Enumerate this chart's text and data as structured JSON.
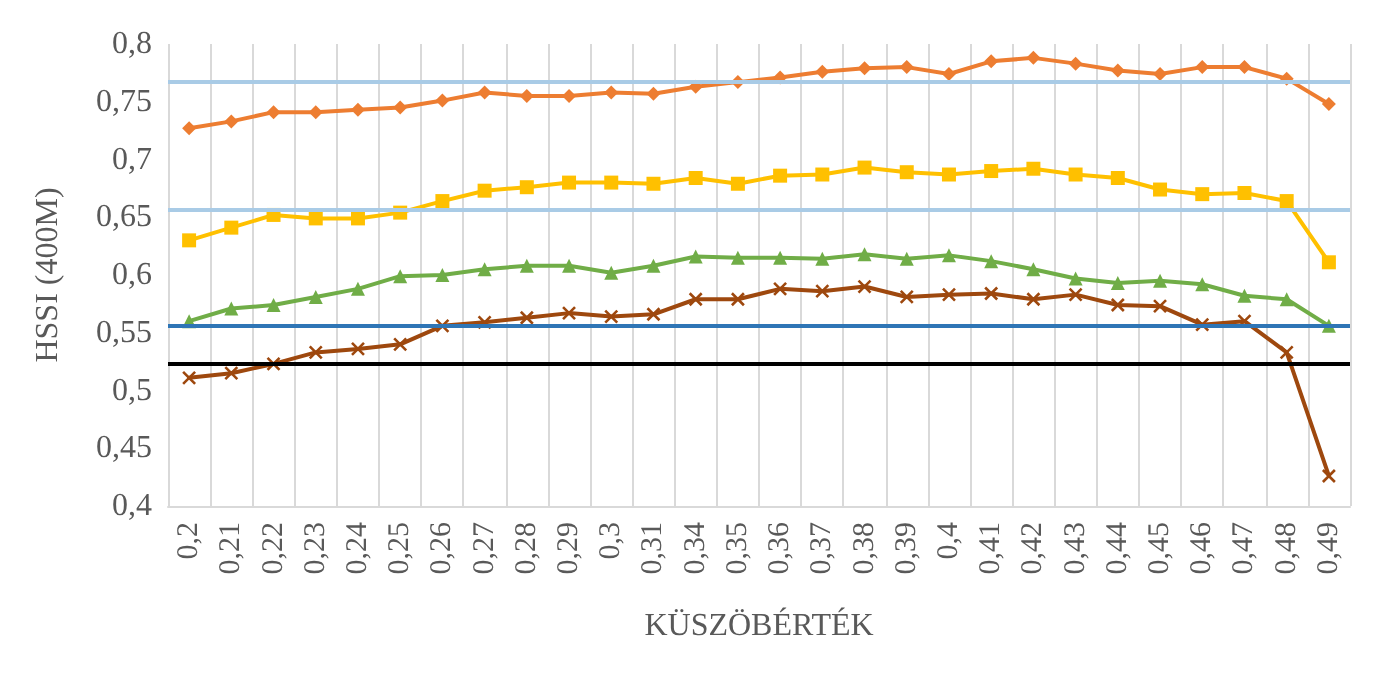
{
  "chart_data": {
    "type": "line",
    "xlabel": "KÜSZÖBÉRTÉK",
    "ylabel": "HSSI (400M)",
    "categories": [
      "0,2",
      "0,21",
      "0,22",
      "0,23",
      "0,24",
      "0,25",
      "0,26",
      "0,27",
      "0,28",
      "0,29",
      "0,3",
      "0,31",
      "0,34",
      "0,35",
      "0,36",
      "0,37",
      "0,38",
      "0,39",
      "0,4",
      "0,41",
      "0,42",
      "0,43",
      "0,44",
      "0,45",
      "0,46",
      "0,47",
      "0,48",
      "0,49"
    ],
    "series": [
      {
        "color": "#ed7d31",
        "marker": "diamond",
        "values": [
          0.727,
          0.733,
          0.741,
          0.741,
          0.743,
          0.745,
          0.751,
          0.758,
          0.755,
          0.755,
          0.758,
          0.757,
          0.763,
          0.767,
          0.771,
          0.776,
          0.779,
          0.78,
          0.774,
          0.785,
          0.788,
          0.783,
          0.777,
          0.774,
          0.78,
          0.78,
          0.77,
          0.748
        ]
      },
      {
        "color": "#ffc000",
        "marker": "square",
        "values": [
          0.63,
          0.641,
          0.652,
          0.649,
          0.649,
          0.654,
          0.664,
          0.673,
          0.676,
          0.68,
          0.68,
          0.679,
          0.684,
          0.679,
          0.686,
          0.687,
          0.693,
          0.689,
          0.687,
          0.69,
          0.692,
          0.687,
          0.684,
          0.674,
          0.67,
          0.671,
          0.664,
          0.611
        ]
      },
      {
        "color": "#70ad47",
        "marker": "triangle",
        "values": [
          0.56,
          0.571,
          0.574,
          0.581,
          0.588,
          0.599,
          0.6,
          0.605,
          0.608,
          0.608,
          0.602,
          0.608,
          0.616,
          0.615,
          0.615,
          0.614,
          0.618,
          0.614,
          0.617,
          0.612,
          0.605,
          0.597,
          0.593,
          0.595,
          0.592,
          0.582,
          0.579,
          0.556
        ]
      },
      {
        "color": "#9e480e",
        "marker": "cross",
        "values": [
          0.511,
          0.515,
          0.523,
          0.533,
          0.536,
          0.54,
          0.556,
          0.559,
          0.563,
          0.567,
          0.564,
          0.566,
          0.579,
          0.579,
          0.588,
          0.586,
          0.59,
          0.581,
          0.583,
          0.584,
          0.579,
          0.583,
          0.574,
          0.573,
          0.557,
          0.56,
          0.533,
          0.426
        ]
      }
    ],
    "ref_lines": [
      {
        "axis": "y",
        "value": 0.767,
        "color": "#a9cbe6"
      },
      {
        "axis": "y",
        "value": 0.657,
        "color": "#a9cbe6"
      },
      {
        "axis": "y",
        "value": 0.557,
        "color": "#2e75b6"
      },
      {
        "axis": "y",
        "value": 0.524,
        "color": "#000000"
      }
    ],
    "ylim": [
      0.4,
      0.8
    ],
    "yticks": [
      {
        "value": 0.4,
        "label": "0,4"
      },
      {
        "value": 0.45,
        "label": "0,45"
      },
      {
        "value": 0.5,
        "label": "0,5"
      },
      {
        "value": 0.55,
        "label": "0,55"
      },
      {
        "value": 0.6,
        "label": "0,6"
      },
      {
        "value": 0.65,
        "label": "0,65"
      },
      {
        "value": 0.7,
        "label": "0,7"
      },
      {
        "value": 0.75,
        "label": "0,75"
      },
      {
        "value": 0.8,
        "label": "0,8"
      }
    ],
    "grid": "x",
    "line_style": "solid"
  }
}
